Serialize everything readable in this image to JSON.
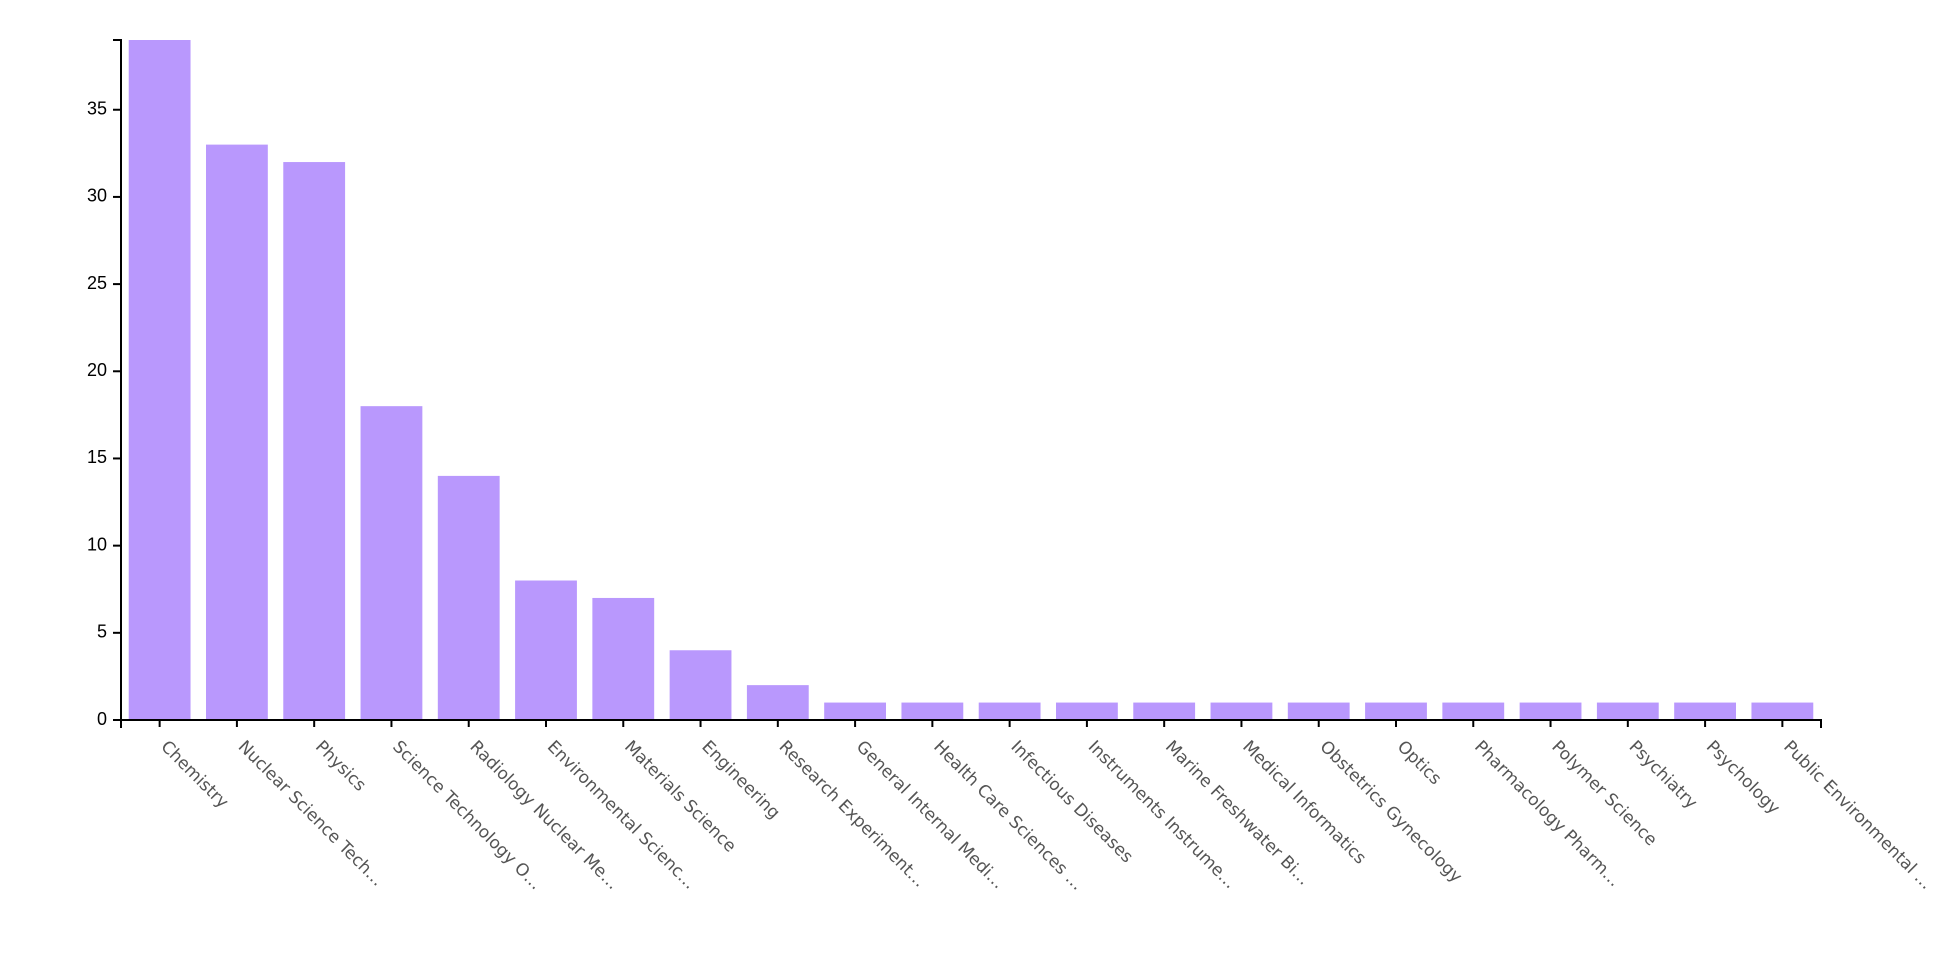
{
  "chart_data": {
    "type": "bar",
    "categories": [
      "Chemistry",
      "Nuclear Science Tech…",
      "Physics",
      "Science Technology O…",
      "Radiology Nuclear Me…",
      "Environmental Scienc…",
      "Materials Science",
      "Engineering",
      "Research Experiment…",
      "General Internal Medi…",
      "Health Care Sciences …",
      "Infectious Diseases",
      "Instruments Instrume…",
      "Marine Freshwater Bi…",
      "Medical Informatics",
      "Obstetrics Gynecology",
      "Optics",
      "Pharmacology Pharm…",
      "Polymer Science",
      "Psychiatry",
      "Psychology",
      "Public Environmental …"
    ],
    "values": [
      39,
      33,
      32,
      18,
      14,
      8,
      7,
      4,
      2,
      1,
      1,
      1,
      1,
      1,
      1,
      1,
      1,
      1,
      1,
      1,
      1,
      1
    ],
    "color": "#b998fd",
    "ylim": [
      0,
      39
    ],
    "yticks": [
      0,
      5,
      10,
      15,
      20,
      25,
      30,
      35
    ]
  }
}
